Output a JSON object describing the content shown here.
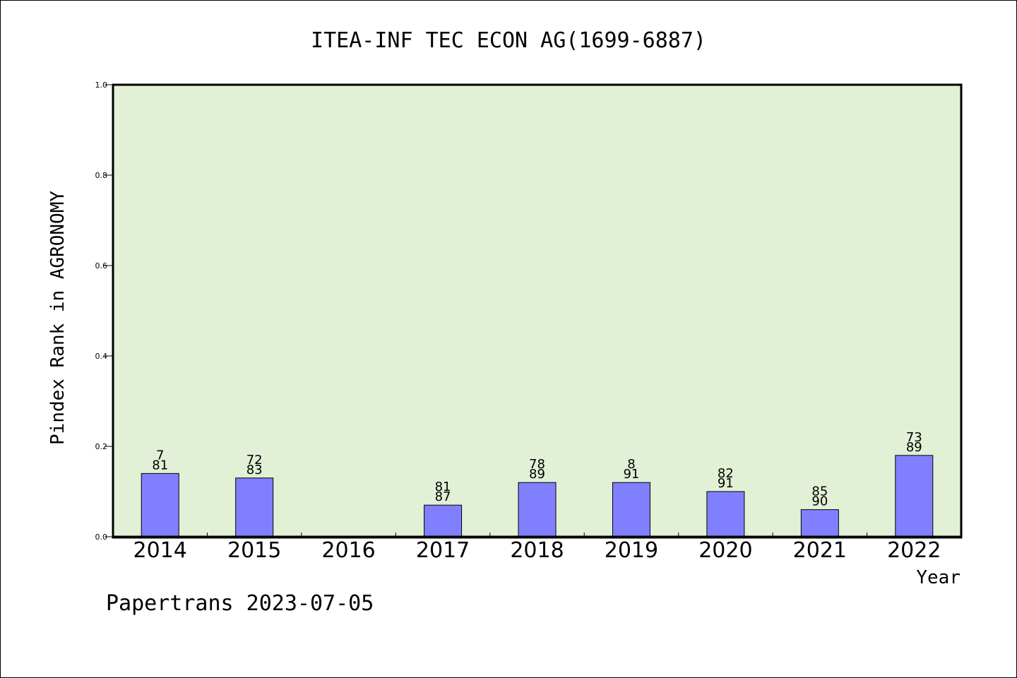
{
  "chart_data": {
    "type": "bar",
    "title": "ITEA-INF TEC ECON AG(1699-6887)",
    "xlabel": "Year",
    "ylabel": "Pindex Rank in AGRONOMY",
    "ylim": [
      0,
      1.0
    ],
    "yticks": [
      "0.0",
      "0.2",
      "0.4",
      "0.6",
      "0.8",
      "1.0"
    ],
    "categories": [
      "2014",
      "2015",
      "2016",
      "2017",
      "2018",
      "2019",
      "2020",
      "2021",
      "2022"
    ],
    "values": [
      0.14,
      0.13,
      null,
      0.07,
      0.12,
      0.12,
      0.1,
      0.06,
      0.18
    ],
    "labels_top": [
      "7",
      "72",
      "",
      "81",
      "78",
      "8",
      "82",
      "85",
      "73"
    ],
    "labels_bottom": [
      "81",
      "83",
      "",
      "87",
      "89",
      "91",
      "91",
      "90",
      "89"
    ],
    "grid": false,
    "colors": {
      "plot_bg": "#e2f0d6",
      "bar": "#8080ff"
    }
  },
  "footer": "Papertrans 2023-07-05"
}
